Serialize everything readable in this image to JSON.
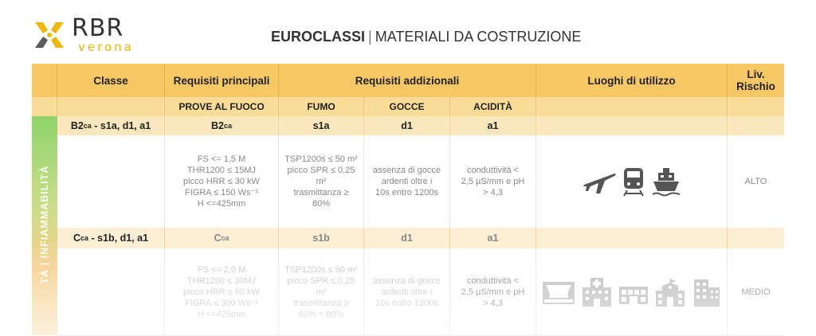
{
  "logo": {
    "text": "RBR",
    "sub": "verona",
    "brand_color": "#e8b400"
  },
  "title": {
    "bold": "EUROCLASSI",
    "separator": "|",
    "rest": "MATERIALI DA COSTRUZIONE"
  },
  "header": {
    "classe": "Classe",
    "requisiti_principali": "Requisiti principali",
    "requisiti_addizionali": "Requisiti addizionali",
    "luoghi": "Luoghi di utilizzo",
    "liv_rischio": "Liv. Rischio"
  },
  "subheader": {
    "prove": "PROVE AL FUOCO",
    "fumo": "FUMO",
    "gocce": "GOCCE",
    "acidita": "ACIDITÀ"
  },
  "side_label": "TÀ | INFIAMMABILITÀ",
  "rows": [
    {
      "class_main": "B2",
      "class_sub": "ca",
      "class_suffix": " - s1a, d1, a1",
      "prova_main": "B2",
      "prova_sub": "ca",
      "fumo": "s1a",
      "gocce": "d1",
      "acidita": "a1",
      "req_principali": [
        "FS <= 1,5 M",
        "THR1200 ≤ 15MJ",
        "picco HRR ≤ 30 kW",
        "FIGRA ≤ 150 Ws⁻¹",
        "H <=425mm"
      ],
      "req_fumo": [
        "TSP1200s ≤ 50 m²",
        "picco SPR ≤ 0,25",
        "m²",
        "trasmittanza ≥",
        "80%"
      ],
      "req_gocce": [
        "assenza di gocce",
        "ardenti oltre i",
        "10s entro 1200s"
      ],
      "req_acidita": [
        "conduttività <",
        "2,5 µS/mm e pH",
        "> 4,3"
      ],
      "luoghi_icons": [
        "airplane-icon",
        "train-icon",
        "ship-icon"
      ],
      "rischio": "ALTO"
    },
    {
      "class_main": "C",
      "class_sub": "ca",
      "class_suffix": " - s1b, d1, a1",
      "prova_main": "C",
      "prova_sub": "ca",
      "fumo": "s1b",
      "gocce": "d1",
      "acidita": "a1",
      "req_principali": [
        "FS <= 2,0 M",
        "THR1200 ≤ 30MJ",
        "picco HRR ≤ 60 kW",
        "FIGRA ≤ 300 Ws⁻¹",
        "H <=425mm"
      ],
      "req_fumo": [
        "TSP1200s ≤ 50 m²",
        "picco SPR ≤ 0,25",
        "m²",
        "trasmittanza ≥",
        "60% < 80%"
      ],
      "req_gocce": [
        "assenza di gocce",
        "ardenti oltre i",
        "10s entro 1200s"
      ],
      "req_acidita": [
        "conduttività <",
        "2,5 µS/mm e pH",
        "> 4,3"
      ],
      "luoghi_icons": [
        "theater-icon",
        "hospital-icon",
        "shops-icon",
        "school-icon",
        "office-building-icon"
      ],
      "rischio": "MEDIO"
    }
  ]
}
